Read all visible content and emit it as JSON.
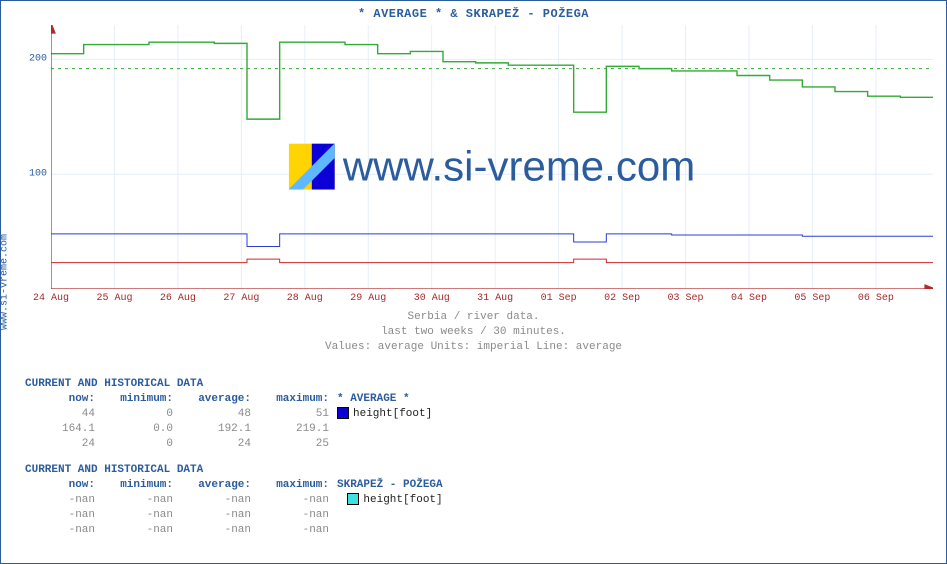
{
  "title": "* AVERAGE * &  SKRAPEŽ -  POŽEGA",
  "ylabel": "www.si-vreme.com",
  "watermark_text": "www.si-vreme.com",
  "subtitles": [
    "Serbia / river data.",
    "last two weeks / 30 minutes.",
    "Values: average  Units: imperial  Line: average"
  ],
  "chart": {
    "type": "line",
    "background_color": "#ffffff",
    "axis_color": "#b02a2a",
    "ytick_color": "#2b5c9e",
    "grid_color": "#e6eef8",
    "dash_color": "#33aa33",
    "title_color": "#2b5c9e",
    "title_fontsize": 12,
    "label_fontsize": 10,
    "ylim": [
      0,
      230
    ],
    "yticks": [
      100,
      200
    ],
    "dash_y": 192,
    "x_categories": [
      "24 Aug",
      "25 Aug",
      "26 Aug",
      "27 Aug",
      "28 Aug",
      "29 Aug",
      "30 Aug",
      "31 Aug",
      "01 Sep",
      "02 Sep",
      "03 Sep",
      "04 Sep",
      "05 Sep",
      "06 Sep"
    ],
    "series": [
      {
        "name": "red-line",
        "color": "#cc2b2b",
        "width": 1,
        "y": [
          23,
          23,
          23,
          23,
          23,
          23,
          26,
          23,
          23,
          23,
          23,
          23,
          23,
          23,
          23,
          23,
          26,
          23,
          23,
          23,
          23,
          23,
          23,
          23,
          23,
          23,
          23,
          23
        ]
      },
      {
        "name": "blue-line",
        "color": "#2b3ed4",
        "width": 1,
        "y": [
          48,
          48,
          48,
          48,
          48,
          48,
          37,
          48,
          48,
          48,
          48,
          48,
          48,
          48,
          48,
          48,
          41,
          48,
          48,
          47,
          47,
          47,
          47,
          46,
          46,
          46,
          46,
          46
        ]
      },
      {
        "name": "green-line",
        "color": "#33aa33",
        "width": 1.4,
        "y": [
          205,
          213,
          213,
          215,
          215,
          214,
          148,
          215,
          215,
          213,
          205,
          207,
          198,
          197,
          195,
          195,
          154,
          194,
          192,
          190,
          190,
          186,
          182,
          176,
          172,
          168,
          167,
          167
        ]
      }
    ]
  },
  "tables": [
    {
      "header": "CURRENT AND HISTORICAL DATA",
      "series_label": "* AVERAGE *",
      "columns": [
        "now:",
        "minimum:",
        "average:",
        "maximum:"
      ],
      "rows": [
        [
          "44",
          "0",
          "48",
          "51"
        ],
        [
          "164.1",
          "0.0",
          "192.1",
          "219.1"
        ],
        [
          "24",
          "0",
          "24",
          "25"
        ]
      ],
      "legend": {
        "color": "#0b00d6",
        "label": "height[foot]"
      }
    },
    {
      "header": "CURRENT AND HISTORICAL DATA",
      "series_label": "SKRAPEŽ -  POŽEGA",
      "columns": [
        "now:",
        "minimum:",
        "average:",
        "maximum:"
      ],
      "rows": [
        [
          "-nan",
          "-nan",
          "-nan",
          "-nan"
        ],
        [
          "-nan",
          "-nan",
          "-nan",
          "-nan"
        ],
        [
          "-nan",
          "-nan",
          "-nan",
          "-nan"
        ]
      ],
      "legend": {
        "color": "#3fe0e0",
        "label": "height[foot]"
      }
    }
  ]
}
